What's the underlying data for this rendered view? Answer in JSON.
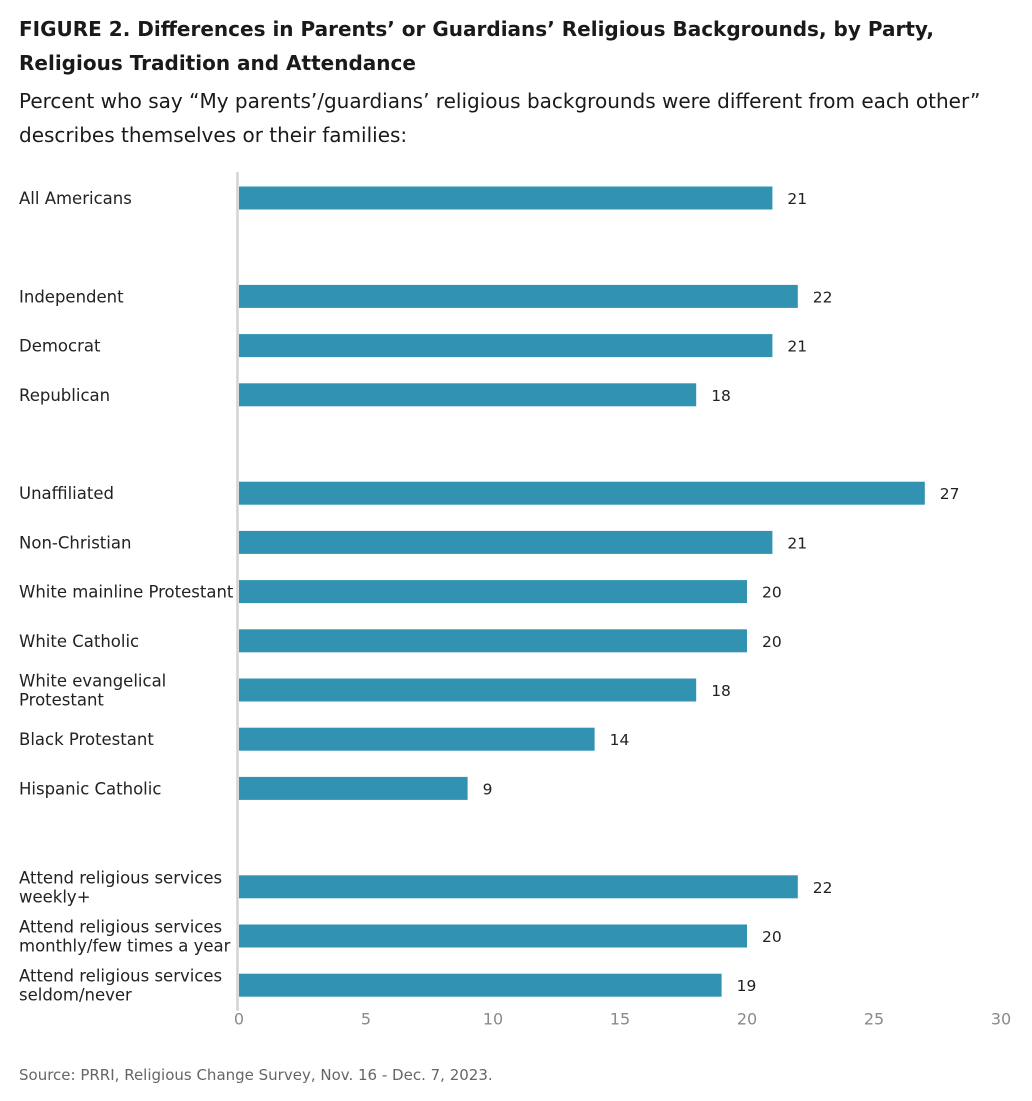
{
  "title": "FIGURE 2.  Differences in Parents’ or Guardians’ Religious Backgrounds, by Party, Religious Tradition and Attendance",
  "subtitle": "Percent who say “My parents’/guardians’ religious backgrounds were different from each other” describes themselves or their families:",
  "source": "Source: PRRI, Religious Change Survey, Nov. 16 - Dec. 7, 2023.",
  "colors": {
    "bar": "#3193b1",
    "axis": "#d3d3d3",
    "label_text": "#222222",
    "tick_text": "#8a8a8a"
  },
  "chart_data": {
    "type": "bar",
    "orientation": "horizontal",
    "title": "",
    "xlabel": "",
    "ylabel": "",
    "xlim": [
      0,
      30
    ],
    "xticks": [
      0,
      5,
      10,
      15,
      20,
      25,
      30
    ],
    "grid": false,
    "groups": [
      {
        "items": [
          {
            "label": [
              "All Americans"
            ],
            "value": 21
          }
        ]
      },
      {
        "items": [
          {
            "label": [
              "Independent"
            ],
            "value": 22
          },
          {
            "label": [
              "Democrat"
            ],
            "value": 21
          },
          {
            "label": [
              "Republican"
            ],
            "value": 18
          }
        ]
      },
      {
        "items": [
          {
            "label": [
              "Unaffiliated"
            ],
            "value": 27
          },
          {
            "label": [
              "Non-Christian"
            ],
            "value": 21
          },
          {
            "label": [
              "White mainline Protestant"
            ],
            "value": 20
          },
          {
            "label": [
              "White Catholic"
            ],
            "value": 20
          },
          {
            "label": [
              "White evangelical",
              "Protestant"
            ],
            "value": 18
          },
          {
            "label": [
              "Black Protestant"
            ],
            "value": 14
          },
          {
            "label": [
              "Hispanic Catholic"
            ],
            "value": 9
          }
        ]
      },
      {
        "items": [
          {
            "label": [
              "Attend religious services",
              "weekly+"
            ],
            "value": 22
          },
          {
            "label": [
              "Attend religious services",
              "monthly/few times a year"
            ],
            "value": 20
          },
          {
            "label": [
              "Attend religious services",
              "seldom/never"
            ],
            "value": 19
          }
        ]
      }
    ]
  }
}
